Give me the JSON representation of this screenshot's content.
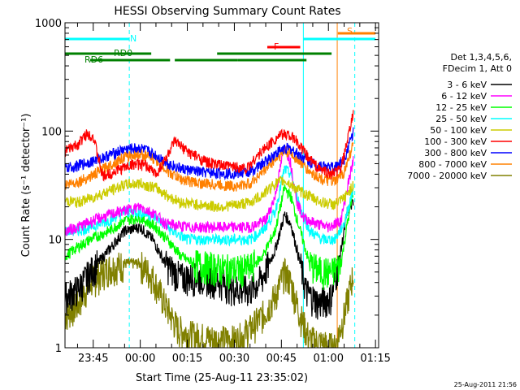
{
  "chart_data": {
    "type": "line",
    "title": "HESSI Observing Summary Count Rates",
    "xlabel": "Start Time (25-Aug-11 23:35:02)",
    "ylabel": "Count Rate (s⁻¹ detector⁻¹)",
    "yscale": "log",
    "ylim": [
      1,
      1000
    ],
    "xlim_min": [
      -9,
      79
    ],
    "y_ticks": [
      {
        "v": 1,
        "label": "1"
      },
      {
        "v": 10,
        "label": "10"
      },
      {
        "v": 100,
        "label": "100"
      },
      {
        "v": 1000,
        "label": "1000"
      }
    ],
    "x_ticks": [
      {
        "v": 0,
        "label": "23:45"
      },
      {
        "v": 15,
        "label": "00:00"
      },
      {
        "v": 30,
        "label": "00:15"
      },
      {
        "v": 45,
        "label": "00:30"
      },
      {
        "v": 60,
        "label": "00:45"
      },
      {
        "v": 75,
        "label": "01:00"
      },
      {
        "v": 90,
        "label": "01:15"
      }
    ],
    "legend": {
      "header": [
        "Det 1,3,4,5,6,",
        "FDecim 1, Att 0"
      ],
      "placement": "right"
    },
    "series": [
      {
        "name": "3 - 6 keV",
        "color": "#000000",
        "points": [
          [
            -9,
            3
          ],
          [
            -5,
            3.5
          ],
          [
            -1,
            5
          ],
          [
            5,
            8
          ],
          [
            10,
            12
          ],
          [
            15,
            13
          ],
          [
            19,
            10
          ],
          [
            23,
            6
          ],
          [
            28,
            4.5
          ],
          [
            35,
            4.5
          ],
          [
            40,
            4.2
          ],
          [
            46,
            3.5
          ],
          [
            50,
            3.4
          ],
          [
            54,
            4.5
          ],
          [
            58,
            8
          ],
          [
            61,
            17
          ],
          [
            63,
            14
          ],
          [
            66,
            6
          ],
          [
            68,
            3.3
          ],
          [
            72,
            2.6
          ],
          [
            76,
            3
          ],
          [
            79,
            8
          ],
          [
            81,
            18
          ],
          [
            83,
            22
          ]
        ]
      },
      {
        "name": "6 - 12 keV",
        "color": "#ff00ff",
        "points": [
          [
            -9,
            12
          ],
          [
            -5,
            13
          ],
          [
            0,
            15
          ],
          [
            8,
            18
          ],
          [
            15,
            20
          ],
          [
            20,
            17
          ],
          [
            23,
            14
          ],
          [
            30,
            13
          ],
          [
            40,
            13
          ],
          [
            46,
            13
          ],
          [
            50,
            13
          ],
          [
            55,
            15
          ],
          [
            58,
            25
          ],
          [
            61,
            75
          ],
          [
            63,
            50
          ],
          [
            65,
            22
          ],
          [
            67,
            16
          ],
          [
            71,
            14
          ],
          [
            75,
            13
          ],
          [
            79,
            15
          ],
          [
            81,
            30
          ],
          [
            83,
            55
          ]
        ]
      },
      {
        "name": "12 - 25 keV",
        "color": "#00ff00",
        "points": [
          [
            -9,
            7
          ],
          [
            -5,
            8.5
          ],
          [
            -1,
            10
          ],
          [
            5,
            12
          ],
          [
            10,
            15
          ],
          [
            15,
            16
          ],
          [
            20,
            13
          ],
          [
            25,
            9
          ],
          [
            28,
            7
          ],
          [
            32,
            6
          ],
          [
            40,
            5.5
          ],
          [
            46,
            5.3
          ],
          [
            50,
            5.5
          ],
          [
            54,
            7
          ],
          [
            58,
            12
          ],
          [
            61,
            30
          ],
          [
            63,
            25
          ],
          [
            66,
            12
          ],
          [
            69,
            6
          ],
          [
            72,
            5.2
          ],
          [
            76,
            5
          ],
          [
            79,
            6
          ],
          [
            81,
            14
          ],
          [
            83,
            28
          ]
        ]
      },
      {
        "name": "25 - 50 keV",
        "color": "#00ffff",
        "points": [
          [
            -9,
            12
          ],
          [
            -5,
            12
          ],
          [
            -1,
            13
          ],
          [
            5,
            15
          ],
          [
            10,
            18
          ],
          [
            15,
            18
          ],
          [
            20,
            16
          ],
          [
            25,
            12
          ],
          [
            30,
            10
          ],
          [
            40,
            10
          ],
          [
            46,
            10
          ],
          [
            50,
            10
          ],
          [
            54,
            12
          ],
          [
            58,
            18
          ],
          [
            61,
            45
          ],
          [
            63,
            40
          ],
          [
            66,
            20
          ],
          [
            69,
            12
          ],
          [
            73,
            10
          ],
          [
            77,
            10
          ],
          [
            80,
            14
          ],
          [
            83,
            30
          ]
        ]
      },
      {
        "name": "50 - 100 keV",
        "color": "#cccc00",
        "points": [
          [
            -9,
            23
          ],
          [
            -5,
            22
          ],
          [
            -1,
            24
          ],
          [
            5,
            28
          ],
          [
            10,
            32
          ],
          [
            15,
            33
          ],
          [
            20,
            30
          ],
          [
            24,
            25
          ],
          [
            28,
            22
          ],
          [
            34,
            21
          ],
          [
            40,
            20
          ],
          [
            46,
            21
          ],
          [
            50,
            22
          ],
          [
            54,
            26
          ],
          [
            58,
            33
          ],
          [
            61,
            35
          ],
          [
            63,
            32
          ],
          [
            66,
            28
          ],
          [
            69,
            25
          ],
          [
            73,
            22
          ],
          [
            77,
            21
          ],
          [
            80,
            24
          ],
          [
            83,
            32
          ]
        ]
      },
      {
        "name": "100 - 300 keV",
        "color": "#ff0000",
        "points": [
          [
            -9,
            65
          ],
          [
            -5,
            75
          ],
          [
            -2,
            95
          ],
          [
            0,
            90
          ],
          [
            3,
            38
          ],
          [
            8,
            44
          ],
          [
            13,
            50
          ],
          [
            17,
            48
          ],
          [
            20,
            40
          ],
          [
            23,
            55
          ],
          [
            26,
            80
          ],
          [
            30,
            65
          ],
          [
            36,
            52
          ],
          [
            41,
            48
          ],
          [
            46,
            47
          ],
          [
            49,
            45
          ],
          [
            52,
            58
          ],
          [
            56,
            75
          ],
          [
            59,
            90
          ],
          [
            62,
            95
          ],
          [
            65,
            80
          ],
          [
            68,
            60
          ],
          [
            72,
            45
          ],
          [
            76,
            40
          ],
          [
            79,
            45
          ],
          [
            81,
            80
          ],
          [
            83,
            150
          ]
        ]
      },
      {
        "name": "300 - 800 keV",
        "color": "#0000ff",
        "points": [
          [
            -9,
            45
          ],
          [
            -5,
            48
          ],
          [
            -1,
            52
          ],
          [
            5,
            60
          ],
          [
            10,
            68
          ],
          [
            15,
            70
          ],
          [
            20,
            60
          ],
          [
            24,
            50
          ],
          [
            28,
            45
          ],
          [
            34,
            42
          ],
          [
            40,
            41
          ],
          [
            46,
            41
          ],
          [
            50,
            42
          ],
          [
            54,
            50
          ],
          [
            58,
            62
          ],
          [
            61,
            70
          ],
          [
            63,
            68
          ],
          [
            66,
            60
          ],
          [
            69,
            52
          ],
          [
            73,
            48
          ],
          [
            77,
            46
          ],
          [
            80,
            55
          ],
          [
            83,
            100
          ]
        ]
      },
      {
        "name": "800 - 7000 keV",
        "color": "#ff8000",
        "points": [
          [
            -9,
            32
          ],
          [
            -5,
            34
          ],
          [
            -1,
            38
          ],
          [
            5,
            48
          ],
          [
            10,
            58
          ],
          [
            15,
            62
          ],
          [
            20,
            55
          ],
          [
            24,
            42
          ],
          [
            28,
            36
          ],
          [
            34,
            33
          ],
          [
            40,
            32
          ],
          [
            46,
            31
          ],
          [
            50,
            33
          ],
          [
            54,
            42
          ],
          [
            58,
            55
          ],
          [
            61,
            65
          ],
          [
            63,
            62
          ],
          [
            66,
            52
          ],
          [
            69,
            42
          ],
          [
            73,
            36
          ],
          [
            77,
            34
          ],
          [
            80,
            42
          ],
          [
            83,
            78
          ]
        ]
      },
      {
        "name": "7000 - 20000 keV",
        "color": "#808000",
        "points": [
          [
            -9,
            2
          ],
          [
            -5,
            2.5
          ],
          [
            -1,
            4
          ],
          [
            5,
            5.5
          ],
          [
            10,
            6
          ],
          [
            15,
            6
          ],
          [
            19,
            4.5
          ],
          [
            23,
            2.5
          ],
          [
            27,
            1.5
          ],
          [
            32,
            1.3
          ],
          [
            40,
            1.2
          ],
          [
            46,
            1.2
          ],
          [
            50,
            1.5
          ],
          [
            54,
            2
          ],
          [
            58,
            3
          ],
          [
            61,
            5
          ],
          [
            63,
            4
          ],
          [
            66,
            2
          ],
          [
            69,
            1.2
          ],
          [
            73,
            1.1
          ],
          [
            77,
            1
          ],
          [
            80,
            2
          ],
          [
            83,
            5
          ]
        ]
      }
    ],
    "vlines": [
      {
        "x": -9,
        "style": "solid",
        "color": "#00ffff"
      },
      {
        "x": 11.5,
        "style": "dashed",
        "color": "#00ffff"
      },
      {
        "x": 67,
        "style": "solid",
        "color": "#00ffff"
      },
      {
        "x": 77.8,
        "style": "solid",
        "color": "#ff8000"
      },
      {
        "x": 83.4,
        "style": "dashed",
        "color": "#00ffff"
      }
    ],
    "flag_bars": [
      {
        "label": "N",
        "color": "#00ffff",
        "segments": [
          [
            -9,
            11.5
          ],
          [
            67,
            90
          ]
        ]
      },
      {
        "label": "S",
        "color": "#ff8000",
        "segments": [
          [
            78,
            90
          ]
        ]
      },
      {
        "label": "F",
        "color": "#ff0000",
        "segments": [
          [
            55.5,
            66
          ]
        ]
      },
      {
        "label": "RD0",
        "color": "#008000",
        "segments": [
          [
            -9,
            18.5
          ],
          [
            39.5,
            76
          ]
        ]
      },
      {
        "label": "RD6",
        "color": "#008000",
        "segments": [
          [
            -1,
            24.5
          ],
          [
            26,
            46
          ],
          [
            46,
            68
          ]
        ]
      }
    ]
  },
  "footer_date": "25-Aug-2011 21:56"
}
